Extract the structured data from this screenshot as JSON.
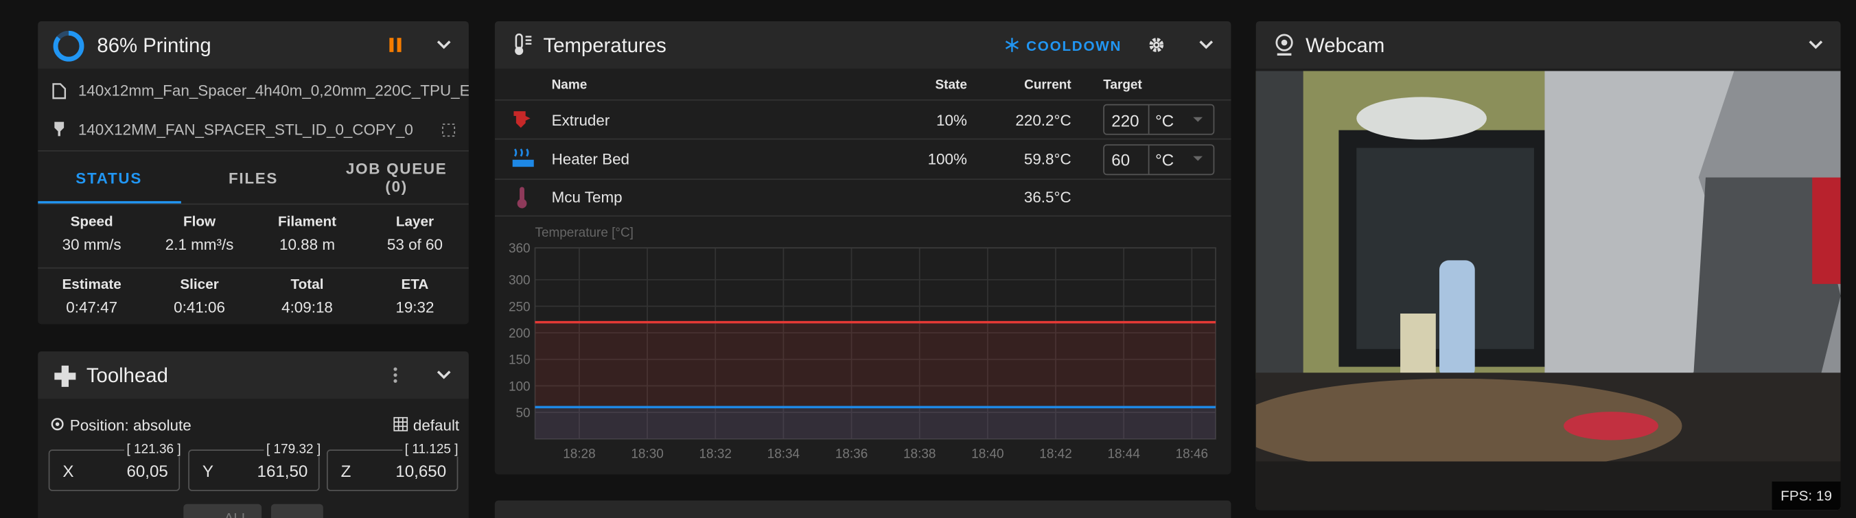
{
  "status_panel": {
    "title": "86% Printing",
    "progress": 86,
    "file": "140x12mm_Fan_Spacer_4h40m_0,20mm_220C_TPU_E...",
    "object": "140X12MM_FAN_SPACER_STL_ID_0_COPY_0",
    "tabs": [
      "STATUS",
      "FILES",
      "JOB QUEUE (0)"
    ],
    "stats": [
      {
        "label": "Speed",
        "value": "30 mm/s"
      },
      {
        "label": "Flow",
        "value": "2.1 mm³/s"
      },
      {
        "label": "Filament",
        "value": "10.88 m"
      },
      {
        "label": "Layer",
        "value": "53 of 60"
      },
      {
        "label": "Estimate",
        "value": "0:47:47"
      },
      {
        "label": "Slicer",
        "value": "0:41:06"
      },
      {
        "label": "Total",
        "value": "4:09:18"
      },
      {
        "label": "ETA",
        "value": "19:32"
      }
    ]
  },
  "toolhead": {
    "title": "Toolhead",
    "position_mode": "Position: absolute",
    "profile": "default",
    "axes": [
      {
        "name": "X",
        "value": "60,05",
        "position": "[ 121.36 ]"
      },
      {
        "name": "Y",
        "value": "161,50",
        "position": "[ 179.32 ]"
      },
      {
        "name": "Z",
        "value": "10,650",
        "position": "[ 11.125 ]"
      }
    ],
    "home_button": "ALL"
  },
  "temperatures": {
    "title": "Temperatures",
    "cooldown": "COOLDOWN",
    "columns": [
      "Name",
      "State",
      "Current",
      "Target"
    ],
    "rows": [
      {
        "name": "Extruder",
        "state": "10%",
        "current": "220.2°C",
        "target": "220",
        "unit": "°C"
      },
      {
        "name": "Heater Bed",
        "state": "100%",
        "current": "59.8°C",
        "target": "60",
        "unit": "°C"
      },
      {
        "name": "Mcu Temp",
        "current": "36.5°C"
      }
    ],
    "chart": {
      "type": "line",
      "y_label": "Temperature [°C]",
      "ylim": [
        0,
        360
      ],
      "yticks": [
        50,
        100,
        150,
        200,
        250,
        300,
        360
      ],
      "xlim": [
        1106.7,
        1126.7
      ],
      "xticks": [
        {
          "value": 1108,
          "label": "18:28"
        },
        {
          "value": 1110,
          "label": "18:30"
        },
        {
          "value": 1112,
          "label": "18:32"
        },
        {
          "value": 1114,
          "label": "18:34"
        },
        {
          "value": 1116,
          "label": "18:36"
        },
        {
          "value": 1118,
          "label": "18:38"
        },
        {
          "value": 1120,
          "label": "18:40"
        },
        {
          "value": 1122,
          "label": "18:42"
        },
        {
          "value": 1124,
          "label": "18:44"
        },
        {
          "value": 1126,
          "label": "18:46"
        }
      ],
      "x": [
        1106.7,
        1110,
        1114,
        1118,
        1122,
        1126.7
      ],
      "series": [
        {
          "name": "Extruder",
          "color": "#e53935",
          "values": [
            220,
            220,
            220,
            220,
            220,
            220
          ]
        },
        {
          "name": "Heater Bed",
          "color": "#1e88e5",
          "values": [
            60,
            60,
            60,
            60,
            60,
            60
          ]
        }
      ]
    }
  },
  "webcam": {
    "title": "Webcam",
    "fps": "FPS: 19"
  }
}
